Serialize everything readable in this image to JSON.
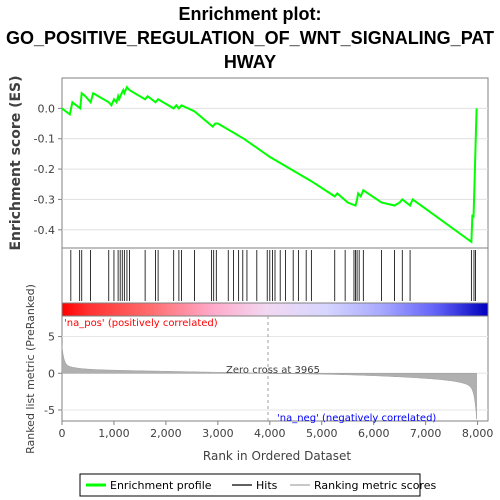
{
  "chart_data": {
    "type": "line",
    "title_lines": [
      "Enrichment plot:",
      "GO_POSITIVE_REGULATION_OF_WNT_SIGNALING_PAT",
      "HWAY"
    ],
    "ylabel_top": "Enrichment score (ES)",
    "ylabel_bottom": "Ranked list metric (PreRanked)",
    "xlabel": "Rank in Ordered Dataset",
    "x_ticks": [
      0,
      1000,
      2000,
      3000,
      4000,
      5000,
      6000,
      7000,
      8000
    ],
    "x_tick_labels": [
      "0",
      "1,000",
      "2,000",
      "3,000",
      "4,000",
      "5,000",
      "6,000",
      "7,000",
      "8,000"
    ],
    "xlim": [
      0,
      8200
    ],
    "es_ylim": [
      -0.46,
      0.1
    ],
    "es_ticks": [
      0.0,
      -0.1,
      -0.2,
      -0.3,
      -0.4
    ],
    "es_tick_labels": [
      "0.0",
      "-0.1",
      "-0.2",
      "-0.3",
      "-0.4"
    ],
    "metric_ylim": [
      -6.5,
      7.8
    ],
    "metric_ticks": [
      5,
      0,
      -5
    ],
    "metric_tick_labels": [
      "5",
      "0",
      "-5"
    ],
    "zero_cross_rank": 3965,
    "zero_cross_label": "Zero cross at 3965",
    "pos_label": "'na_pos' (positively correlated)",
    "neg_label": "'na_neg' (negatively correlated)",
    "es_curve": {
      "x": [
        0,
        150,
        200,
        350,
        380,
        450,
        550,
        600,
        900,
        950,
        1000,
        1050,
        1080,
        1100,
        1150,
        1180,
        1200,
        1250,
        1300,
        1600,
        1650,
        1800,
        1850,
        2150,
        2200,
        2250,
        2300,
        2550,
        2900,
        2950,
        3000,
        3500,
        4000,
        4500,
        4800,
        5250,
        5300,
        5500,
        5650,
        5680,
        5700,
        5750,
        5800,
        6150,
        6400,
        6500,
        6550,
        6700,
        6750,
        7880,
        7900,
        7920,
        7940,
        7960,
        7980
      ],
      "y": [
        0.0,
        -0.02,
        0.02,
        0.0,
        0.05,
        0.04,
        0.02,
        0.05,
        0.02,
        0.01,
        0.03,
        0.02,
        0.04,
        0.03,
        0.05,
        0.06,
        0.05,
        0.07,
        0.06,
        0.03,
        0.04,
        0.02,
        0.03,
        0.0,
        0.01,
        0.0,
        0.01,
        -0.01,
        -0.06,
        -0.05,
        -0.05,
        -0.1,
        -0.16,
        -0.21,
        -0.24,
        -0.29,
        -0.28,
        -0.31,
        -0.32,
        -0.3,
        -0.28,
        -0.29,
        -0.27,
        -0.31,
        -0.32,
        -0.31,
        -0.3,
        -0.32,
        -0.3,
        -0.44,
        -0.35,
        -0.36,
        -0.25,
        -0.13,
        0.0
      ]
    },
    "hits": [
      170,
      340,
      380,
      550,
      900,
      1000,
      1080,
      1120,
      1160,
      1200,
      1250,
      1300,
      1600,
      1800,
      1850,
      2150,
      2250,
      2300,
      2550,
      2880,
      2920,
      2970,
      3200,
      3300,
      3400,
      3480,
      3560,
      3750,
      3950,
      4000,
      4050,
      4100,
      4200,
      4300,
      4450,
      4550,
      4700,
      4800,
      5250,
      5450,
      5620,
      5650,
      5680,
      5720,
      5800,
      6150,
      6400,
      6550,
      6700,
      7880,
      7930,
      7960
    ],
    "legend": [
      {
        "label": "Enrichment profile",
        "color": "#00ff00"
      },
      {
        "label": "Hits",
        "color": "#606060"
      },
      {
        "label": "Ranking metric scores",
        "color": "#c8c8c8"
      }
    ],
    "colors": {
      "es": "#00ff00",
      "hits": "#000000",
      "metric": "#b0b0b0",
      "pos_text": "#ff0000",
      "neg_text": "#0000ff"
    }
  }
}
